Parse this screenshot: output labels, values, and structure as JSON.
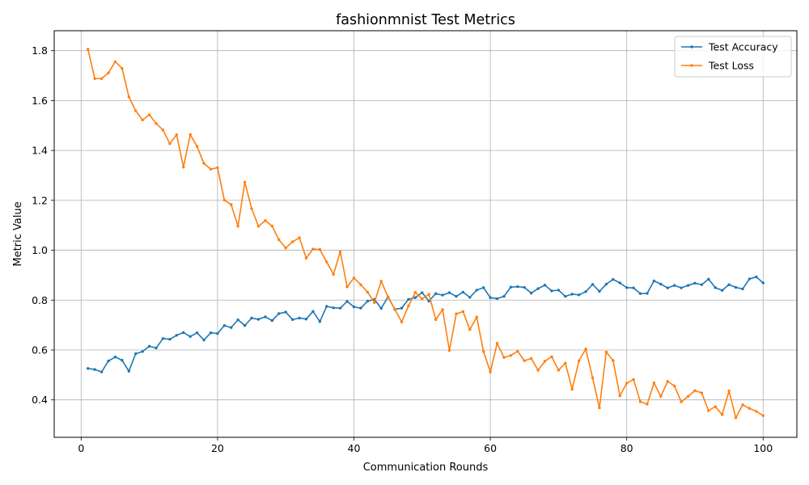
{
  "chart_data": {
    "type": "line",
    "title": "fashionmnist Test Metrics",
    "xlabel": "Communication Rounds",
    "ylabel": "Metric Value",
    "xlim": [
      -3.95,
      104.95
    ],
    "ylim": [
      0.25,
      1.88
    ],
    "xticks": [
      0,
      20,
      40,
      60,
      80,
      100
    ],
    "yticks": [
      0.4,
      0.6,
      0.8,
      1.0,
      1.2,
      1.4,
      1.6,
      1.8
    ],
    "xtick_labels": [
      "0",
      "20",
      "40",
      "60",
      "80",
      "100"
    ],
    "ytick_labels": [
      "0.4",
      "0.6",
      "0.8",
      "1.0",
      "1.2",
      "1.4",
      "1.6",
      "1.8"
    ],
    "grid": true,
    "legend_position": "upper right",
    "x": [
      1,
      2,
      3,
      4,
      5,
      6,
      7,
      8,
      9,
      10,
      11,
      12,
      13,
      14,
      15,
      16,
      17,
      18,
      19,
      20,
      21,
      22,
      23,
      24,
      25,
      26,
      27,
      28,
      29,
      30,
      31,
      32,
      33,
      34,
      35,
      36,
      37,
      38,
      39,
      40,
      41,
      42,
      43,
      44,
      45,
      46,
      47,
      48,
      49,
      50,
      51,
      52,
      53,
      54,
      55,
      56,
      57,
      58,
      59,
      60,
      61,
      62,
      63,
      64,
      65,
      66,
      67,
      68,
      69,
      70,
      71,
      72,
      73,
      74,
      75,
      76,
      77,
      78,
      79,
      80,
      81,
      82,
      83,
      84,
      85,
      86,
      87,
      88,
      89,
      90,
      91,
      92,
      93,
      94,
      95,
      96,
      97,
      98,
      99,
      100
    ],
    "series": [
      {
        "name": "Test Accuracy",
        "color": "#1f77b4",
        "values": [
          0.526,
          0.522,
          0.512,
          0.556,
          0.572,
          0.559,
          0.515,
          0.585,
          0.594,
          0.615,
          0.608,
          0.646,
          0.643,
          0.659,
          0.67,
          0.654,
          0.669,
          0.64,
          0.669,
          0.666,
          0.698,
          0.69,
          0.721,
          0.698,
          0.728,
          0.723,
          0.733,
          0.718,
          0.746,
          0.752,
          0.722,
          0.728,
          0.724,
          0.755,
          0.714,
          0.775,
          0.769,
          0.768,
          0.795,
          0.773,
          0.768,
          0.796,
          0.803,
          0.767,
          0.813,
          0.763,
          0.768,
          0.803,
          0.81,
          0.83,
          0.796,
          0.826,
          0.82,
          0.83,
          0.815,
          0.832,
          0.811,
          0.84,
          0.85,
          0.81,
          0.806,
          0.815,
          0.852,
          0.854,
          0.851,
          0.828,
          0.846,
          0.86,
          0.837,
          0.84,
          0.815,
          0.824,
          0.821,
          0.834,
          0.863,
          0.835,
          0.864,
          0.883,
          0.869,
          0.85,
          0.849,
          0.826,
          0.827,
          0.877,
          0.864,
          0.849,
          0.859,
          0.849,
          0.859,
          0.868,
          0.862,
          0.884,
          0.85,
          0.839,
          0.862,
          0.851,
          0.845,
          0.885,
          0.893,
          0.869
        ]
      },
      {
        "name": "Test Loss",
        "color": "#ff7f0e",
        "values": [
          1.806,
          1.688,
          1.688,
          1.711,
          1.756,
          1.729,
          1.615,
          1.559,
          1.522,
          1.543,
          1.508,
          1.482,
          1.427,
          1.463,
          1.333,
          1.464,
          1.416,
          1.348,
          1.325,
          1.331,
          1.201,
          1.183,
          1.096,
          1.273,
          1.167,
          1.096,
          1.119,
          1.097,
          1.042,
          1.009,
          1.034,
          1.05,
          0.968,
          1.005,
          1.003,
          0.953,
          0.903,
          0.994,
          0.853,
          0.889,
          0.862,
          0.832,
          0.79,
          0.876,
          0.812,
          0.764,
          0.712,
          0.777,
          0.831,
          0.805,
          0.823,
          0.722,
          0.762,
          0.598,
          0.745,
          0.754,
          0.682,
          0.732,
          0.594,
          0.512,
          0.627,
          0.57,
          0.578,
          0.595,
          0.557,
          0.566,
          0.519,
          0.555,
          0.573,
          0.519,
          0.547,
          0.443,
          0.557,
          0.604,
          0.488,
          0.368,
          0.592,
          0.558,
          0.416,
          0.467,
          0.482,
          0.393,
          0.383,
          0.468,
          0.414,
          0.474,
          0.456,
          0.392,
          0.414,
          0.437,
          0.428,
          0.357,
          0.373,
          0.341,
          0.436,
          0.328,
          0.38,
          0.366,
          0.354,
          0.337
        ]
      }
    ]
  }
}
